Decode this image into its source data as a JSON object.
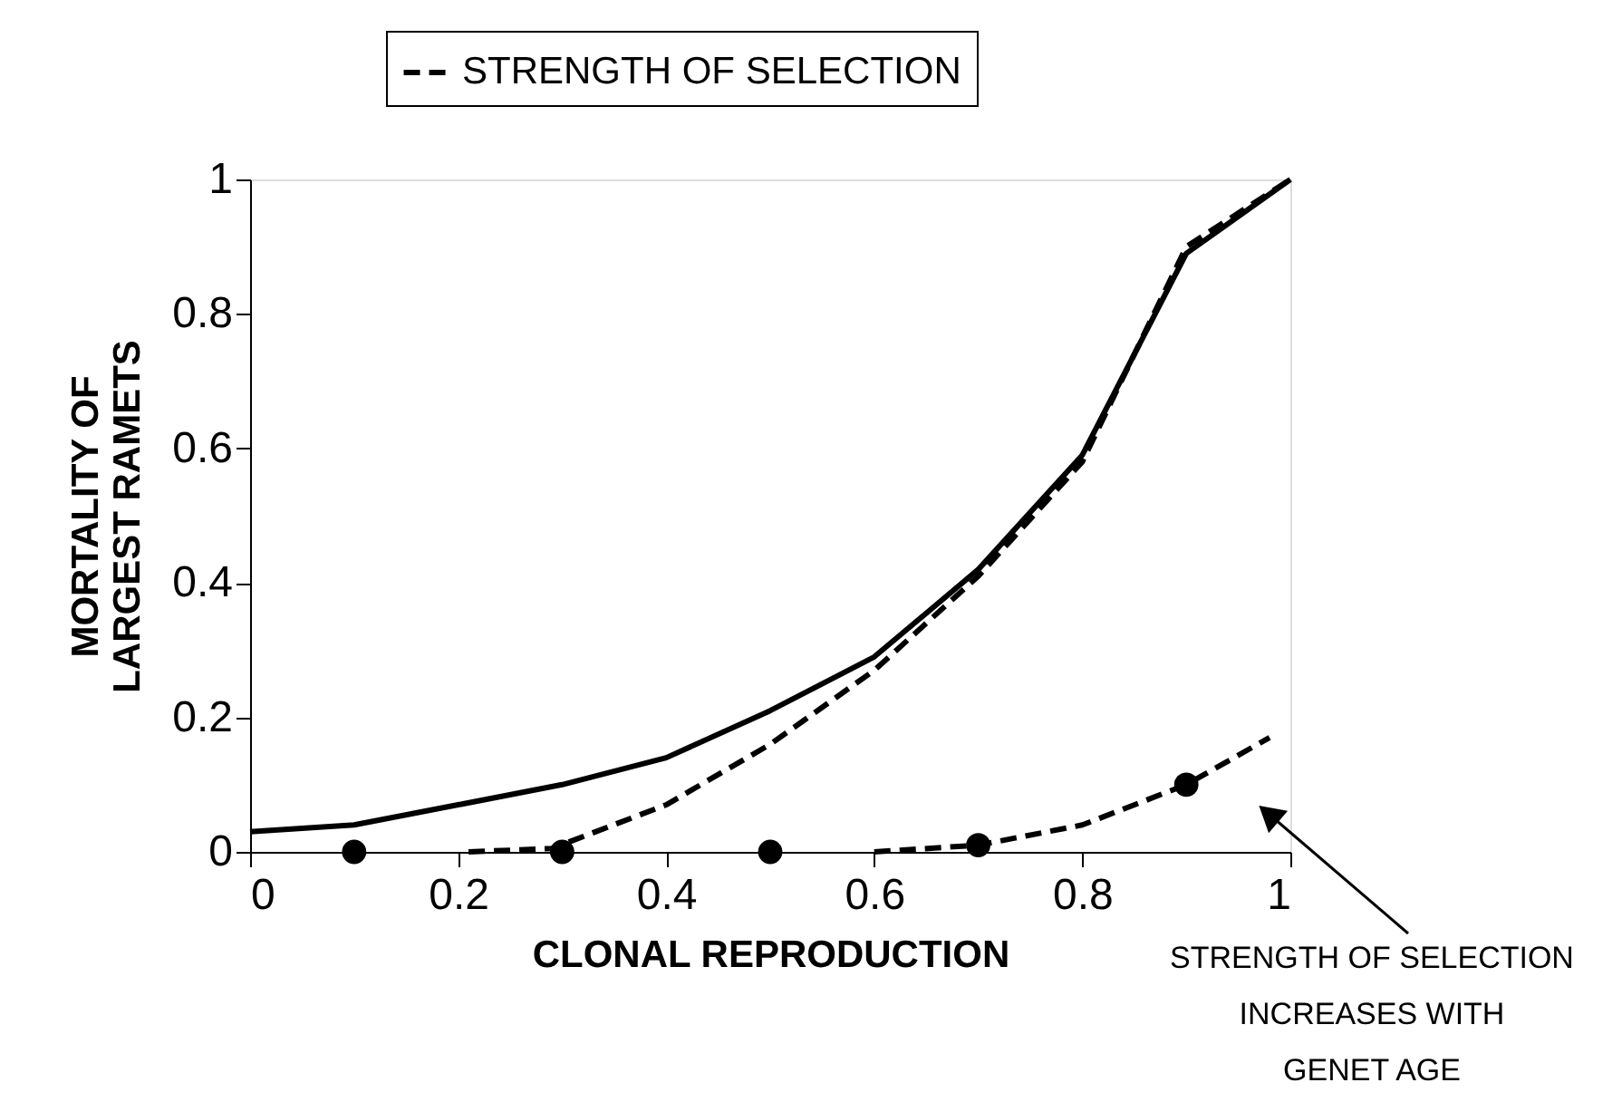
{
  "chart_data": {
    "type": "line",
    "xlabel": "CLONAL REPRODUCTION",
    "ylabel": "MORTALITY OF\nLARGEST RAMETS",
    "xlim": [
      0,
      1
    ],
    "ylim": [
      0,
      1
    ],
    "xticks": [
      0,
      0.2,
      0.4,
      0.6,
      0.8,
      1
    ],
    "yticks": [
      0,
      0.2,
      0.4,
      0.6,
      0.8,
      1
    ],
    "grid": false,
    "legend": "top",
    "series": [
      {
        "color": "#000000",
        "line_style": "solid",
        "marker": "none",
        "x": [
          0,
          0.1,
          0.2,
          0.3,
          0.4,
          0.5,
          0.6,
          0.7,
          0.8,
          0.9,
          1
        ],
        "values": [
          0.03,
          0.04,
          0.07,
          0.1,
          0.14,
          0.21,
          0.29,
          0.42,
          0.59,
          0.89,
          1
        ]
      },
      {
        "color": "#000000",
        "line_style": "dashed",
        "marker": "none",
        "x": [
          0.21,
          0.29,
          0.4,
          0.5,
          0.6,
          0.7,
          0.8,
          0.9,
          1
        ],
        "values": [
          0.0,
          0.005,
          0.07,
          0.16,
          0.27,
          0.41,
          0.58,
          0.9,
          1
        ]
      },
      {
        "name": "STRENGTH OF SELECTION",
        "color": "#000000",
        "line_style": "dashed",
        "marker": "none",
        "x": [
          0.6,
          0.7,
          0.8,
          0.9,
          0.98
        ],
        "values": [
          0.0,
          0.01,
          0.04,
          0.1,
          0.17
        ]
      },
      {
        "type": "scatter",
        "color": "#000000",
        "marker": "circle",
        "x": [
          0.1,
          0.3,
          0.5,
          0.7,
          0.9
        ],
        "values": [
          0,
          0,
          0,
          0.01,
          0.1
        ]
      }
    ],
    "annotations": [
      "STRENGTH OF SELECTION\nINCREASES WITH\nGENET AGE"
    ]
  }
}
